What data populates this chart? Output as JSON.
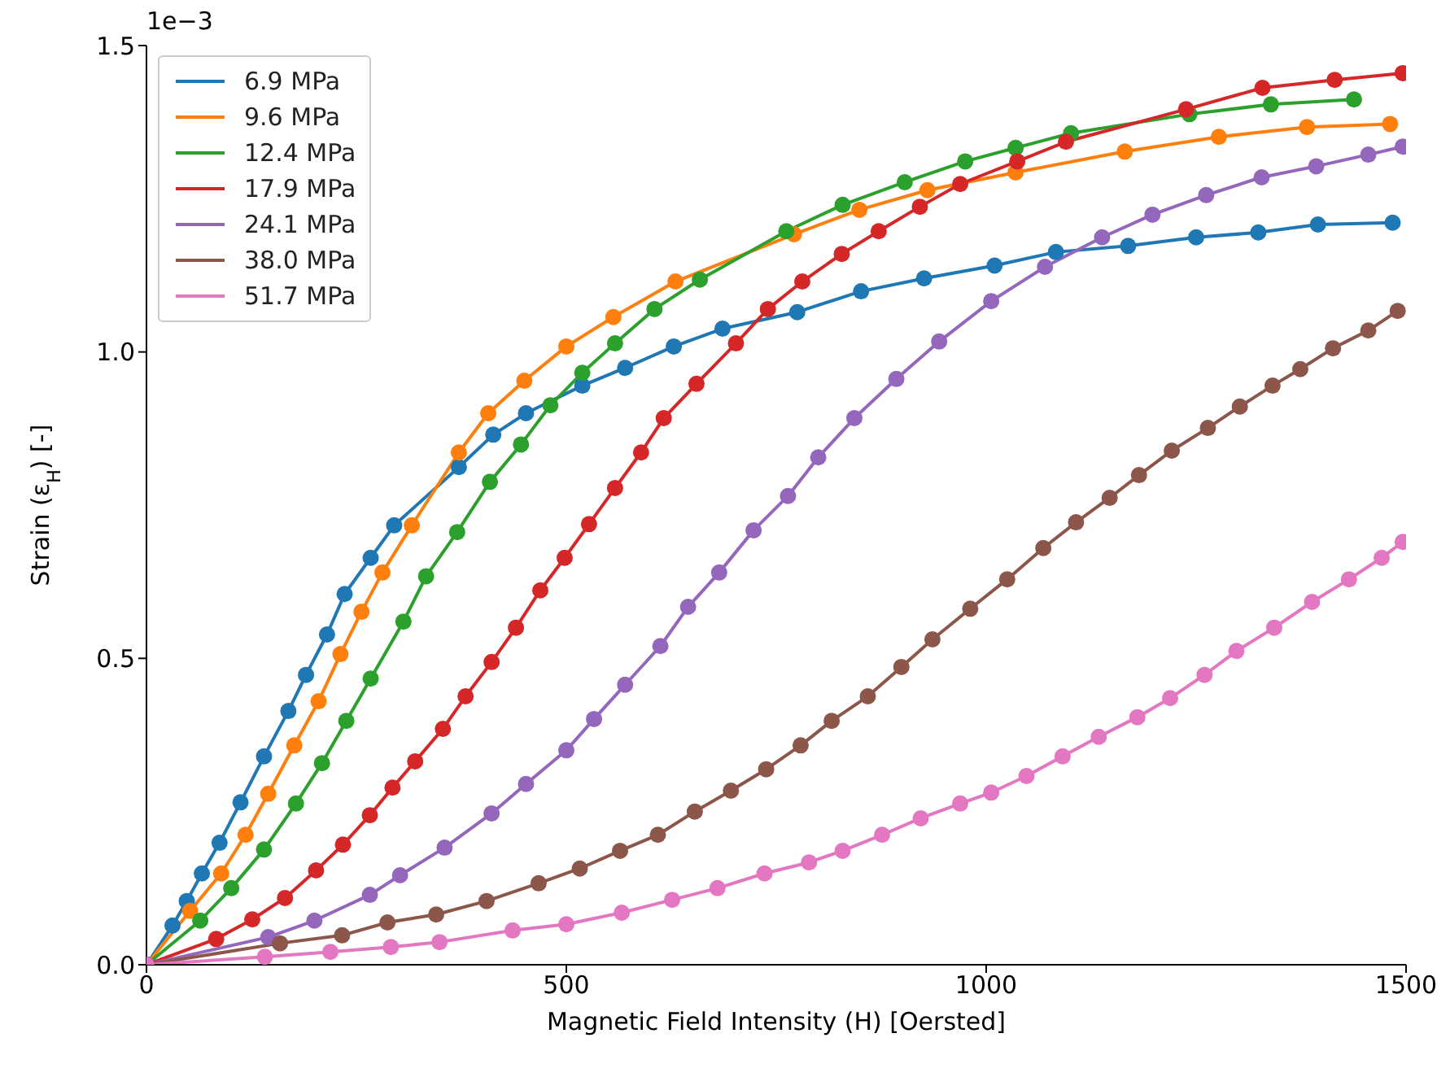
{
  "chart_data": {
    "type": "line",
    "xlabel": "Magnetic Field Intensity (H) [Oersted]",
    "ylabel": "Strain (ε$_{H}$) [-]",
    "annotations": [
      "1e−3"
    ],
    "xlim": [
      0,
      1500
    ],
    "xticks": [
      0,
      500,
      1000,
      1500
    ],
    "ylim": [
      0,
      1.5
    ],
    "yticks": [
      {
        "value": 0,
        "label": "0.0"
      },
      {
        "value": 0.5,
        "label": "0.5"
      },
      {
        "value": 1,
        "label": "1.0"
      },
      {
        "value": 1.5,
        "label": "1.5"
      }
    ],
    "grid": false,
    "legend": "top left",
    "marker": "circle",
    "line_style": "solid",
    "series": [
      {
        "name": "6.9 MPa",
        "color": "#1f77b4",
        "x": [
          0,
          31,
          48,
          66,
          87,
          112,
          140,
          169,
          190,
          215,
          236,
          267,
          295,
          372,
          413,
          452,
          519,
          570,
          628,
          686,
          775,
          851,
          926,
          1010,
          1083,
          1169,
          1250,
          1324,
          1395,
          1484
        ],
        "values": [
          0,
          0.064,
          0.104,
          0.149,
          0.199,
          0.265,
          0.34,
          0.414,
          0.473,
          0.539,
          0.605,
          0.664,
          0.717,
          0.812,
          0.865,
          0.9,
          0.945,
          0.974,
          1.009,
          1.038,
          1.065,
          1.099,
          1.12,
          1.141,
          1.163,
          1.173,
          1.187,
          1.195,
          1.208,
          1.211
        ]
      },
      {
        "name": "9.6 MPa",
        "color": "#ff7f0e",
        "x": [
          0,
          52,
          89,
          118,
          145,
          176,
          205,
          231,
          256,
          281,
          316,
          372,
          407,
          450,
          500,
          556,
          630,
          771,
          849,
          930,
          1035,
          1165,
          1277,
          1382,
          1481
        ],
        "values": [
          0,
          0.088,
          0.149,
          0.212,
          0.279,
          0.358,
          0.43,
          0.507,
          0.576,
          0.64,
          0.717,
          0.836,
          0.9,
          0.953,
          1.009,
          1.057,
          1.115,
          1.192,
          1.232,
          1.264,
          1.293,
          1.327,
          1.351,
          1.367,
          1.372
        ]
      },
      {
        "name": "12.4 MPa",
        "color": "#2ca02c",
        "x": [
          0,
          64,
          101,
          140,
          178,
          209,
          238,
          267,
          306,
          333,
          370,
          409,
          446,
          481,
          519,
          558,
          605,
          659,
          762,
          829,
          903,
          975,
          1035,
          1101,
          1242,
          1339,
          1438
        ],
        "values": [
          0,
          0.072,
          0.125,
          0.188,
          0.263,
          0.329,
          0.398,
          0.467,
          0.56,
          0.634,
          0.706,
          0.788,
          0.849,
          0.913,
          0.966,
          1.014,
          1.07,
          1.118,
          1.197,
          1.24,
          1.277,
          1.311,
          1.333,
          1.357,
          1.388,
          1.404,
          1.412
        ]
      },
      {
        "name": "17.9 MPa",
        "color": "#d62728",
        "x": [
          0,
          83,
          126,
          165,
          202,
          234,
          266,
          293,
          320,
          353,
          380,
          411,
          440,
          469,
          498,
          527,
          558,
          589,
          616,
          655,
          702,
          740,
          781,
          828,
          872,
          921,
          969,
          1037,
          1095,
          1238,
          1329,
          1415,
          1496
        ],
        "values": [
          0,
          0.042,
          0.074,
          0.109,
          0.154,
          0.196,
          0.244,
          0.289,
          0.332,
          0.385,
          0.438,
          0.494,
          0.55,
          0.611,
          0.664,
          0.719,
          0.778,
          0.836,
          0.892,
          0.948,
          1.014,
          1.07,
          1.115,
          1.16,
          1.197,
          1.237,
          1.274,
          1.311,
          1.343,
          1.396,
          1.431,
          1.444,
          1.455
        ]
      },
      {
        "name": "24.1 MPa",
        "color": "#9467bd",
        "x": [
          0,
          145,
          200,
          266,
          302,
          355,
          411,
          452,
          500,
          533,
          570,
          612,
          645,
          682,
          723,
          764,
          800,
          843,
          893,
          944,
          1006,
          1070,
          1138,
          1198,
          1262,
          1328,
          1393,
          1455,
          1496
        ],
        "values": [
          0,
          0.045,
          0.072,
          0.114,
          0.146,
          0.191,
          0.247,
          0.295,
          0.35,
          0.401,
          0.457,
          0.52,
          0.584,
          0.64,
          0.709,
          0.765,
          0.828,
          0.892,
          0.956,
          1.017,
          1.083,
          1.139,
          1.187,
          1.224,
          1.256,
          1.285,
          1.303,
          1.322,
          1.335
        ]
      },
      {
        "name": "38.0 MPa",
        "color": "#8c564b",
        "x": [
          0,
          159,
          233,
          287,
          345,
          405,
          467,
          516,
          564,
          609,
          653,
          696,
          738,
          779,
          816,
          859,
          899,
          936,
          981,
          1025,
          1068,
          1107,
          1147,
          1182,
          1221,
          1264,
          1302,
          1341,
          1374,
          1413,
          1455,
          1490
        ],
        "values": [
          0,
          0.035,
          0.048,
          0.069,
          0.082,
          0.104,
          0.133,
          0.157,
          0.186,
          0.212,
          0.25,
          0.284,
          0.319,
          0.358,
          0.398,
          0.438,
          0.486,
          0.531,
          0.581,
          0.629,
          0.68,
          0.722,
          0.762,
          0.799,
          0.839,
          0.876,
          0.911,
          0.945,
          0.972,
          1.006,
          1.035,
          1.067
        ]
      },
      {
        "name": "51.7 MPa",
        "color": "#e377c2",
        "x": [
          0,
          141,
          219,
          291,
          349,
          436,
          500,
          566,
          626,
          680,
          736,
          789,
          829,
          876,
          922,
          969,
          1006,
          1048,
          1091,
          1134,
          1180,
          1219,
          1260,
          1298,
          1343,
          1388,
          1432,
          1471,
          1496
        ],
        "values": [
          0,
          0.013,
          0.021,
          0.029,
          0.037,
          0.056,
          0.066,
          0.085,
          0.106,
          0.125,
          0.149,
          0.167,
          0.186,
          0.212,
          0.239,
          0.263,
          0.281,
          0.308,
          0.34,
          0.372,
          0.404,
          0.435,
          0.473,
          0.512,
          0.55,
          0.592,
          0.629,
          0.664,
          0.69
        ]
      }
    ]
  }
}
